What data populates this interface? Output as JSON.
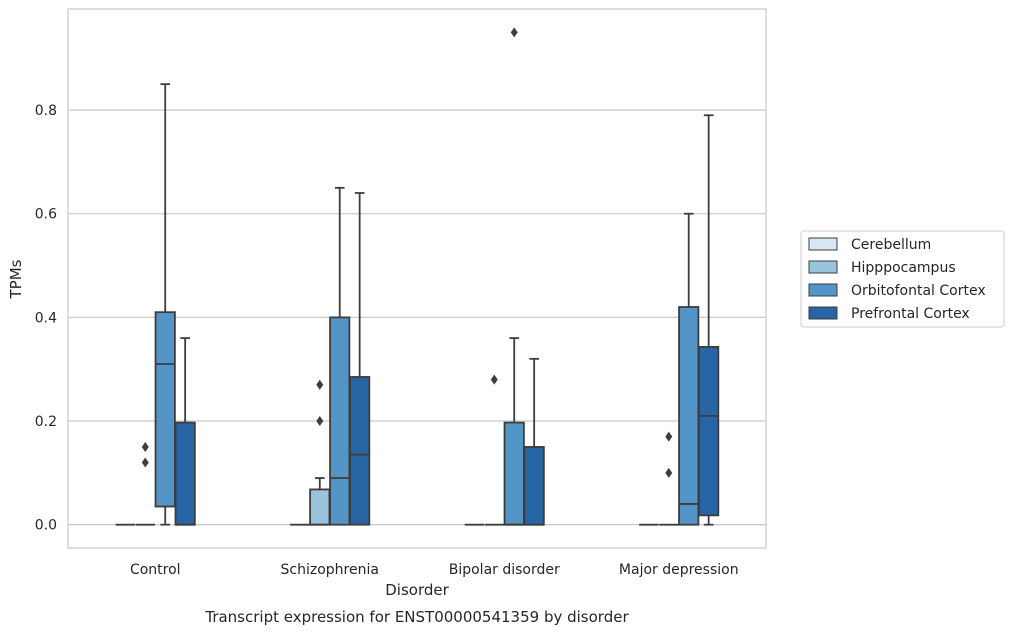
{
  "chart_data": {
    "type": "box",
    "caption": "Transcript expression for ENST00000541359 by disorder",
    "xlabel": "Disorder",
    "ylabel": "TPMs",
    "ylim": [
      -0.045,
      0.995
    ],
    "yticks": [
      "0.0",
      "0.2",
      "0.4",
      "0.6",
      "0.8"
    ],
    "ytick_values": [
      0.0,
      0.2,
      0.4,
      0.6,
      0.8
    ],
    "grid": "horizontal",
    "legend_position": "right",
    "categories": [
      "Control",
      "Schizophrenia",
      "Bipolar disorder",
      "Major depression"
    ],
    "series": [
      {
        "name": "Cerebellum",
        "color": "#d7e6f3",
        "boxes": [
          {
            "q1": 0,
            "median": 0,
            "q3": 0,
            "whisker_low": 0,
            "whisker_high": 0,
            "fliers": []
          },
          {
            "q1": 0,
            "median": 0,
            "q3": 0,
            "whisker_low": 0,
            "whisker_high": 0,
            "fliers": []
          },
          {
            "q1": 0,
            "median": 0,
            "q3": 0,
            "whisker_low": 0,
            "whisker_high": 0,
            "fliers": []
          },
          {
            "q1": 0,
            "median": 0,
            "q3": 0,
            "whisker_low": 0,
            "whisker_high": 0,
            "fliers": []
          }
        ]
      },
      {
        "name": "Hipppocampus",
        "color": "#9ac3de",
        "boxes": [
          {
            "q1": 0,
            "median": 0,
            "q3": 0,
            "whisker_low": 0,
            "whisker_high": 0,
            "fliers": [
              0.12,
              0.15
            ]
          },
          {
            "q1": 0,
            "median": 0,
            "q3": 0.068,
            "whisker_low": 0,
            "whisker_high": 0.09,
            "fliers": [
              0.2,
              0.27
            ]
          },
          {
            "q1": 0,
            "median": 0,
            "q3": 0,
            "whisker_low": 0,
            "whisker_high": 0,
            "fliers": [
              0.28
            ]
          },
          {
            "q1": 0,
            "median": 0,
            "q3": 0,
            "whisker_low": 0,
            "whisker_high": 0,
            "fliers": [
              0.1,
              0.17
            ]
          }
        ]
      },
      {
        "name": "Orbitofontal Cortex",
        "color": "#5495c7",
        "boxes": [
          {
            "q1": 0.035,
            "median": 0.31,
            "q3": 0.41,
            "whisker_low": 0,
            "whisker_high": 0.85,
            "fliers": []
          },
          {
            "q1": 0,
            "median": 0.09,
            "q3": 0.4,
            "whisker_low": 0,
            "whisker_high": 0.65,
            "fliers": []
          },
          {
            "q1": 0,
            "median": 0,
            "q3": 0.197,
            "whisker_low": 0,
            "whisker_high": 0.36,
            "fliers": [
              0.95
            ]
          },
          {
            "q1": 0,
            "median": 0.04,
            "q3": 0.42,
            "whisker_low": 0,
            "whisker_high": 0.6,
            "fliers": []
          }
        ]
      },
      {
        "name": "Prefrontal Cortex",
        "color": "#2865a4",
        "boxes": [
          {
            "q1": 0,
            "median": 0,
            "q3": 0.197,
            "whisker_low": 0,
            "whisker_high": 0.36,
            "fliers": []
          },
          {
            "q1": 0,
            "median": 0.135,
            "q3": 0.285,
            "whisker_low": 0,
            "whisker_high": 0.64,
            "fliers": []
          },
          {
            "q1": 0,
            "median": 0,
            "q3": 0.15,
            "whisker_low": 0,
            "whisker_high": 0.32,
            "fliers": []
          },
          {
            "q1": 0.018,
            "median": 0.21,
            "q3": 0.343,
            "whisker_low": 0,
            "whisker_high": 0.79,
            "fliers": []
          }
        ]
      }
    ]
  }
}
